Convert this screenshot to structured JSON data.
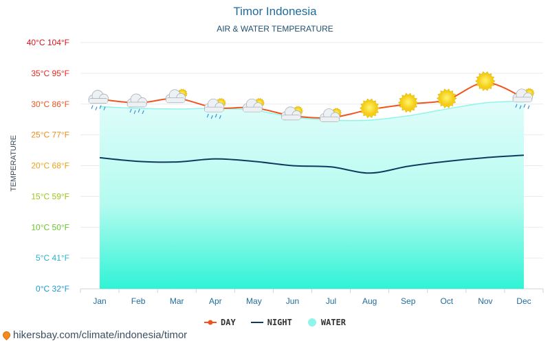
{
  "chart_data": {
    "type": "line",
    "title": "Timor Indonesia",
    "subtitle": "AIR & WATER TEMPERATURE",
    "ylabel": "TEMPERATURE",
    "categories": [
      "Jan",
      "Feb",
      "Mar",
      "Apr",
      "May",
      "Jun",
      "Jul",
      "Aug",
      "Sep",
      "Oct",
      "Nov",
      "Dec"
    ],
    "ylim": [
      0,
      40
    ],
    "y_ticks": [
      {
        "value": 0,
        "label": "0°C 32°F",
        "color": "#1b9bd1"
      },
      {
        "value": 5,
        "label": "5°C 41°F",
        "color": "#2bb3c9"
      },
      {
        "value": 10,
        "label": "10°C 50°F",
        "color": "#69c22a"
      },
      {
        "value": 15,
        "label": "15°C 59°F",
        "color": "#9bc41f"
      },
      {
        "value": 20,
        "label": "20°C 68°F",
        "color": "#e8a317"
      },
      {
        "value": 25,
        "label": "25°C 77°F",
        "color": "#f08c1a"
      },
      {
        "value": 30,
        "label": "30°C 86°F",
        "color": "#e8531f"
      },
      {
        "value": 35,
        "label": "35°C 95°F",
        "color": "#e0281f"
      },
      {
        "value": 40,
        "label": "40°C 104°F",
        "color": "#d6141c"
      }
    ],
    "grid": true,
    "legend_position": "bottom",
    "series": [
      {
        "name": "DAY",
        "color": "#f0531d",
        "values": [
          30.8,
          30.2,
          30.9,
          29.4,
          29.4,
          28.1,
          27.8,
          29.1,
          30.0,
          30.7,
          33.5,
          31.0
        ]
      },
      {
        "name": "NIGHT",
        "color": "#0f3a5f",
        "values": [
          21.3,
          20.7,
          20.6,
          21.1,
          20.7,
          20.0,
          19.8,
          18.8,
          19.9,
          20.7,
          21.3,
          21.7
        ]
      },
      {
        "name": "WATER",
        "color": "#8ff5ea",
        "values": [
          29.6,
          29.3,
          29.2,
          29.3,
          29.0,
          27.9,
          27.4,
          27.4,
          28.1,
          29.2,
          30.2,
          30.5
        ]
      }
    ],
    "weather_icons": [
      "cloud-rain",
      "cloud-rain",
      "cloud-sun",
      "cloud-sun-rain",
      "cloud-sun",
      "cloud-sun",
      "cloud-sun",
      "sun",
      "sun",
      "sun",
      "sun",
      "cloud-sun-rain"
    ]
  },
  "footer": {
    "text": "hikersbay.com/climate/indonesia/timor"
  }
}
